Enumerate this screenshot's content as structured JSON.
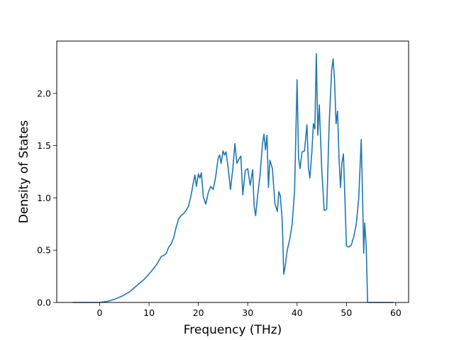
{
  "chart_data": {
    "type": "line",
    "title": "",
    "xlabel": "Frequency (THz)",
    "ylabel": "Density of States",
    "xlim": [
      -8.7,
      62.6
    ],
    "ylim": [
      0.0,
      2.5
    ],
    "xticks": [
      0,
      10,
      20,
      30,
      40,
      50,
      60
    ],
    "yticks": [
      0.0,
      0.5,
      1.0,
      1.5,
      2.0
    ],
    "xtick_labels": [
      "0",
      "10",
      "20",
      "30",
      "40",
      "50",
      "60"
    ],
    "ytick_labels": [
      "0.0",
      "0.5",
      "1.0",
      "1.5",
      "2.0"
    ],
    "grid": false,
    "legend": "none",
    "line_color": "#1f77b4",
    "series": [
      {
        "x": [
          -5.5,
          0.0,
          1.5,
          3.0,
          4.5,
          6.0,
          7.5,
          9.0,
          10.5,
          11.5,
          12.5,
          13.0,
          13.5,
          14.0,
          14.5,
          15.0,
          15.5,
          16.0,
          16.5,
          17.0,
          17.5,
          18.0,
          18.5,
          19.0,
          19.3,
          19.6,
          20.0,
          20.3,
          20.6,
          21.0,
          21.5,
          22.0,
          22.5,
          23.0,
          23.5,
          24.0,
          24.3,
          24.6,
          25.0,
          25.3,
          25.6,
          26.0,
          26.5,
          27.0,
          27.4,
          27.8,
          28.2,
          28.6,
          29.0,
          29.5,
          30.0,
          30.5,
          31.0,
          31.3,
          31.6,
          32.0,
          32.5,
          33.0,
          33.3,
          33.6,
          33.9,
          34.2,
          34.5,
          35.0,
          35.5,
          36.0,
          36.3,
          36.6,
          37.0,
          37.3,
          37.6,
          38.0,
          38.5,
          39.0,
          39.5,
          40.0,
          40.3,
          40.6,
          41.0,
          41.5,
          42.0,
          42.3,
          42.6,
          43.0,
          43.3,
          43.6,
          43.9,
          44.2,
          44.5,
          45.0,
          45.5,
          46.0,
          46.5,
          47.0,
          47.3,
          47.6,
          47.9,
          48.2,
          48.5,
          48.8,
          49.1,
          49.4,
          49.7,
          50.0,
          50.5,
          51.0,
          51.5,
          52.0,
          52.5,
          53.0,
          53.3,
          53.5,
          53.7,
          54.0,
          54.3,
          54.6,
          55.0,
          57.0,
          59.5
        ],
        "y": [
          0.0,
          0.0,
          0.01,
          0.03,
          0.06,
          0.1,
          0.16,
          0.22,
          0.3,
          0.36,
          0.44,
          0.45,
          0.47,
          0.53,
          0.56,
          0.62,
          0.72,
          0.8,
          0.83,
          0.85,
          0.88,
          0.92,
          1.02,
          1.15,
          1.22,
          1.11,
          1.23,
          1.19,
          1.24,
          1.01,
          0.94,
          1.05,
          1.11,
          1.08,
          1.2,
          1.38,
          1.41,
          1.33,
          1.45,
          1.41,
          1.44,
          1.3,
          1.08,
          1.29,
          1.52,
          1.33,
          1.37,
          1.4,
          1.03,
          1.26,
          1.28,
          1.12,
          1.27,
          0.92,
          0.83,
          1.02,
          1.22,
          1.52,
          1.61,
          1.46,
          1.6,
          1.1,
          1.36,
          1.28,
          0.95,
          0.87,
          1.06,
          1.02,
          0.78,
          0.27,
          0.35,
          0.5,
          0.6,
          0.75,
          1.07,
          2.13,
          1.38,
          1.28,
          1.44,
          1.45,
          1.7,
          1.29,
          1.19,
          1.44,
          1.71,
          1.66,
          2.38,
          1.6,
          1.89,
          1.27,
          0.88,
          0.89,
          1.7,
          2.22,
          2.33,
          2.12,
          1.71,
          1.83,
          1.38,
          1.1,
          1.34,
          1.42,
          0.98,
          0.54,
          0.53,
          0.55,
          0.63,
          0.75,
          1.0,
          1.56,
          0.95,
          0.47,
          0.76,
          0.55,
          0.0,
          0.0,
          0.0,
          0.0,
          0.0
        ]
      }
    ]
  }
}
